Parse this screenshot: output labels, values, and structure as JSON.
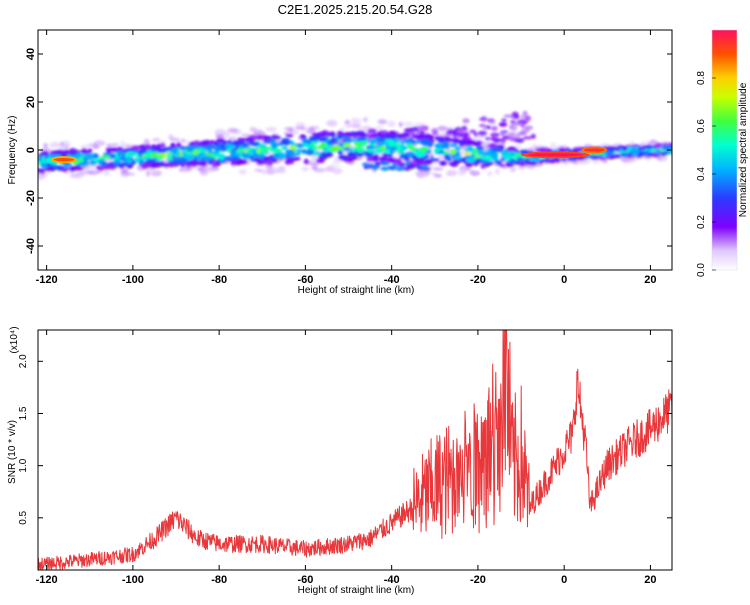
{
  "figure": {
    "title": "C2E1.2025.215.20.54.G28"
  },
  "colors": {
    "signal_line": "#e8383b",
    "axis": "#000000"
  },
  "chart_data": [
    {
      "type": "heatmap",
      "xlabel": "Height of straight line (km)",
      "ylabel": "Frequency (Hz)",
      "xlim": [
        -122,
        25
      ],
      "ylim": [
        -50,
        50
      ],
      "x_ticks": [
        -120,
        -100,
        -80,
        -60,
        -40,
        -20,
        0,
        20
      ],
      "y_ticks": [
        -40,
        -20,
        0,
        20,
        40
      ],
      "colorbar": {
        "label": "Normalized spectral amplitude",
        "range": [
          0,
          1
        ],
        "ticks": [
          "0.0",
          "0.2",
          "0.4",
          "0.6",
          "0.8"
        ],
        "colormap": "rainbow (purple-blue-cyan-green-yellow-red)"
      },
      "band": {
        "description_points_x": [
          -122,
          -100,
          -80,
          -60,
          -45,
          -30,
          -20,
          -10,
          0,
          10,
          25
        ],
        "center_frequency": [
          -5,
          -3,
          -1,
          1,
          2,
          0,
          -2,
          -3,
          -2,
          -1,
          0
        ],
        "half_width": [
          4,
          4,
          5,
          6,
          6,
          6,
          5,
          3,
          2,
          2,
          2
        ]
      },
      "peaks": [
        {
          "x": -116,
          "y": -4,
          "amplitude": 0.9
        },
        {
          "x": -2,
          "y": -2,
          "amplitude": 1.0
        },
        {
          "x": 7,
          "y": 0,
          "amplitude": 0.95
        }
      ]
    },
    {
      "type": "line",
      "xlabel": "Height of straight line (km)",
      "ylabel": "SNR (10 * v/v)",
      "y_multiplier": "(x10⁴)",
      "xlim": [
        -122,
        25
      ],
      "ylim": [
        0,
        2.3
      ],
      "x_ticks": [
        -120,
        -100,
        -80,
        -60,
        -40,
        -20,
        0,
        20
      ],
      "y_ticks": [
        "0.5",
        "1.0",
        "1.5",
        "2.0"
      ],
      "series": [
        {
          "x": [
            -122,
            -110,
            -100,
            -95,
            -90,
            -85,
            -80,
            -70,
            -60,
            -50,
            -45,
            -40,
            -35,
            -30,
            -25,
            -20,
            -15,
            -14,
            -12,
            -10,
            -8,
            -5,
            -2,
            0,
            2,
            3,
            5,
            6,
            8,
            10,
            15,
            20,
            25
          ],
          "y": [
            0.05,
            0.1,
            0.15,
            0.3,
            0.5,
            0.3,
            0.25,
            0.25,
            0.2,
            0.25,
            0.3,
            0.45,
            0.6,
            0.8,
            0.9,
            1.0,
            1.3,
            2.2,
            1.0,
            1.1,
            0.6,
            0.8,
            1.0,
            1.15,
            1.3,
            1.8,
            1.2,
            0.6,
            0.8,
            1.0,
            1.2,
            1.35,
            1.55
          ]
        }
      ]
    }
  ]
}
